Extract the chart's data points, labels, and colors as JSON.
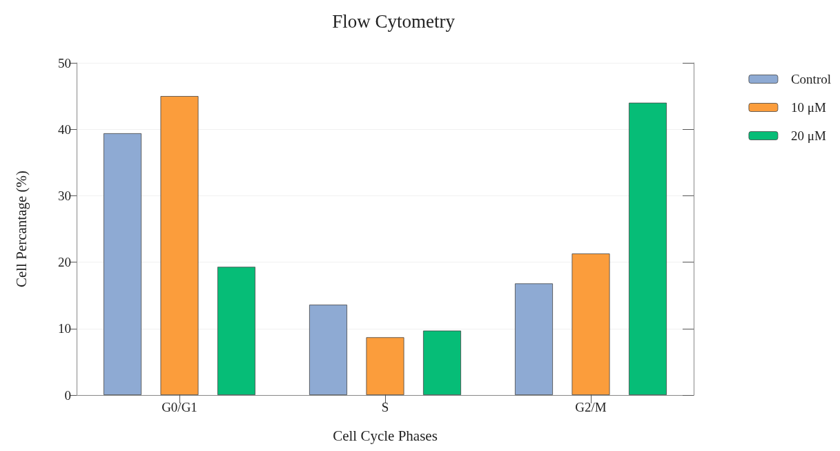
{
  "chart_data": {
    "type": "bar",
    "title": "Flow Cytometry",
    "xlabel": "Cell Cycle Phases",
    "ylabel": "Cell Percantage (%)",
    "categories": [
      "G0/G1",
      "S",
      "G2/M"
    ],
    "series": [
      {
        "name": "Control",
        "color": "#8eaad3",
        "values": [
          39.4,
          13.6,
          16.8
        ]
      },
      {
        "name": "10 μM",
        "color": "#fb9d3c",
        "values": [
          45.0,
          8.7,
          21.3
        ]
      },
      {
        "name": "20 μM",
        "color": "#06bd77",
        "values": [
          19.3,
          9.7,
          44.0
        ]
      }
    ],
    "ylim": [
      0,
      50
    ],
    "yticks": [
      0,
      10,
      20,
      30,
      40,
      50
    ],
    "grid": "y",
    "legend": "top right"
  }
}
